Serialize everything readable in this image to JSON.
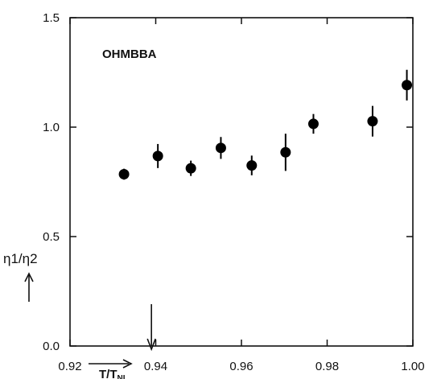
{
  "chart_data": {
    "type": "scatter",
    "title": "OHMBBA",
    "xlabel": "T/T",
    "xlabel_sub": "NI",
    "ylabel": "η1/η2",
    "xlim": [
      0.92,
      1.0
    ],
    "ylim": [
      0.0,
      1.5
    ],
    "xticks": [
      0.92,
      0.94,
      0.96,
      0.98,
      1.0
    ],
    "xtick_labels": [
      "0.92",
      "0.94",
      "0.96",
      "0.98",
      "1.00"
    ],
    "yticks": [
      0.0,
      0.5,
      1.0,
      1.5
    ],
    "ytick_labels": [
      "0.0",
      "0.5",
      "1.0",
      "1.5"
    ],
    "grid": false,
    "arrow_marker_x": 0.939,
    "points": [
      {
        "x": 0.9326,
        "y": 0.785,
        "err": 0.025
      },
      {
        "x": 0.9405,
        "y": 0.868,
        "err": 0.055
      },
      {
        "x": 0.9482,
        "y": 0.812,
        "err": 0.035
      },
      {
        "x": 0.9552,
        "y": 0.905,
        "err": 0.05
      },
      {
        "x": 0.9624,
        "y": 0.825,
        "err": 0.045
      },
      {
        "x": 0.9703,
        "y": 0.885,
        "err": 0.085
      },
      {
        "x": 0.9768,
        "y": 1.015,
        "err": 0.045
      },
      {
        "x": 0.9906,
        "y": 1.027,
        "err": 0.07
      },
      {
        "x": 0.9986,
        "y": 1.192,
        "err": 0.07
      }
    ]
  }
}
